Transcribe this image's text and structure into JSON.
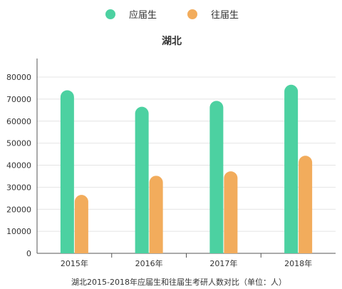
{
  "chart_data": {
    "type": "bar",
    "title": "湖北",
    "caption": "湖北2015-2018年应届生和往届生考研人数对比（单位：人）",
    "categories": [
      "2015年",
      "2016年",
      "2017年",
      "2018年"
    ],
    "series": [
      {
        "name": "应届生",
        "color": "#4cd1a1",
        "values": [
          74000,
          66500,
          69200,
          76500
        ]
      },
      {
        "name": "往届生",
        "color": "#f2ac5c",
        "values": [
          26500,
          35200,
          37200,
          44300
        ]
      }
    ],
    "ylim": [
      0,
      80000
    ],
    "yticks": [
      0,
      10000,
      20000,
      30000,
      40000,
      50000,
      60000,
      70000,
      80000
    ],
    "grid": true,
    "legend_position": "top-center"
  }
}
